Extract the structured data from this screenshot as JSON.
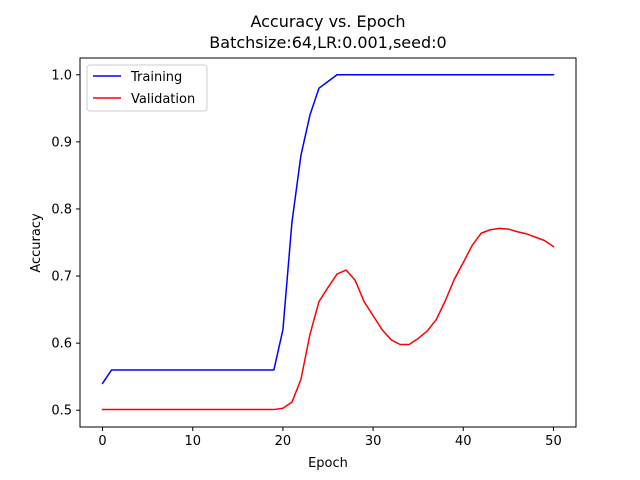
{
  "chart_data": {
    "type": "line",
    "title": "Accuracy vs. Epoch",
    "subtitle": "Batchsize:64,LR:0.001,seed:0",
    "xlabel": "Epoch",
    "ylabel": "Accuracy",
    "xlim": [
      -2.5,
      52.5
    ],
    "ylim": [
      0.475,
      1.025
    ],
    "xticks": [
      0,
      10,
      20,
      30,
      40,
      50
    ],
    "yticks": [
      0.5,
      0.6,
      0.7,
      0.8,
      0.9,
      1.0
    ],
    "ytick_labels": [
      "0.5",
      "0.6",
      "0.7",
      "0.8",
      "0.9",
      "1.0"
    ],
    "grid": false,
    "legend_position": "top-left",
    "series": [
      {
        "name": "Training",
        "color": "#0000ff",
        "x": [
          0,
          1,
          2,
          3,
          4,
          5,
          6,
          7,
          8,
          9,
          10,
          11,
          12,
          13,
          14,
          15,
          16,
          17,
          18,
          19,
          20,
          21,
          22,
          23,
          24,
          25,
          26,
          27,
          28,
          29,
          30,
          31,
          32,
          33,
          34,
          35,
          36,
          37,
          38,
          39,
          40,
          41,
          42,
          43,
          44,
          45,
          46,
          47,
          48,
          49,
          50
        ],
        "y": [
          0.54,
          0.56,
          0.56,
          0.56,
          0.56,
          0.56,
          0.56,
          0.56,
          0.56,
          0.56,
          0.56,
          0.56,
          0.56,
          0.56,
          0.56,
          0.56,
          0.56,
          0.56,
          0.56,
          0.56,
          0.62,
          0.78,
          0.88,
          0.94,
          0.98,
          0.99,
          1.0,
          1.0,
          1.0,
          1.0,
          1.0,
          1.0,
          1.0,
          1.0,
          1.0,
          1.0,
          1.0,
          1.0,
          1.0,
          1.0,
          1.0,
          1.0,
          1.0,
          1.0,
          1.0,
          1.0,
          1.0,
          1.0,
          1.0,
          1.0,
          1.0
        ]
      },
      {
        "name": "Validation",
        "color": "#ff0000",
        "x": [
          0,
          1,
          2,
          3,
          4,
          5,
          6,
          7,
          8,
          9,
          10,
          11,
          12,
          13,
          14,
          15,
          16,
          17,
          18,
          19,
          20,
          21,
          22,
          23,
          24,
          25,
          26,
          27,
          28,
          29,
          30,
          31,
          32,
          33,
          34,
          35,
          36,
          37,
          38,
          39,
          40,
          41,
          42,
          43,
          44,
          45,
          46,
          47,
          48,
          49,
          50
        ],
        "y": [
          0.501,
          0.501,
          0.501,
          0.501,
          0.501,
          0.501,
          0.501,
          0.501,
          0.501,
          0.501,
          0.501,
          0.501,
          0.501,
          0.501,
          0.501,
          0.501,
          0.501,
          0.501,
          0.501,
          0.501,
          0.503,
          0.512,
          0.546,
          0.613,
          0.662,
          0.683,
          0.703,
          0.709,
          0.694,
          0.662,
          0.641,
          0.62,
          0.605,
          0.598,
          0.598,
          0.607,
          0.618,
          0.635,
          0.663,
          0.695,
          0.72,
          0.746,
          0.764,
          0.769,
          0.771,
          0.77,
          0.766,
          0.763,
          0.758,
          0.753,
          0.744
        ]
      }
    ]
  }
}
